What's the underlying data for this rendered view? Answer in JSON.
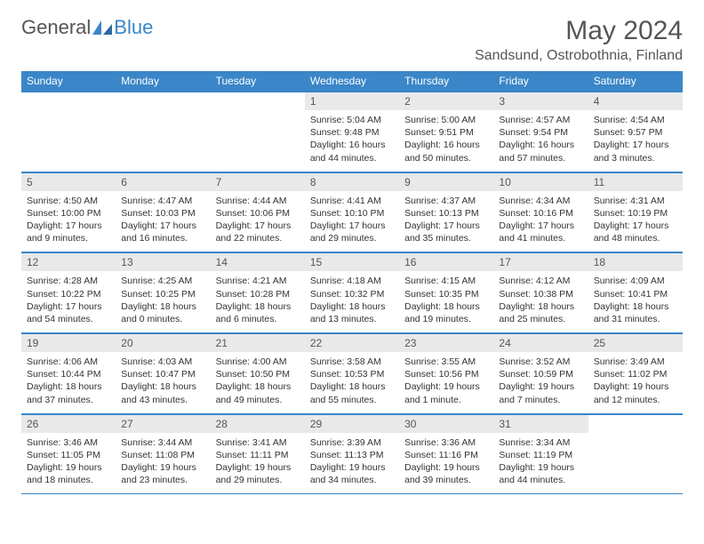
{
  "brand": {
    "part1": "General",
    "part2": "Blue"
  },
  "title": "May 2024",
  "location": "Sandsund, Ostrobothnia, Finland",
  "colors": {
    "accent": "#3a86c8",
    "header_bg": "#3a86c8",
    "daynum_bg": "#e9e9e9",
    "text": "#333333",
    "muted": "#555555",
    "page_bg": "#ffffff"
  },
  "dow": [
    "Sunday",
    "Monday",
    "Tuesday",
    "Wednesday",
    "Thursday",
    "Friday",
    "Saturday"
  ],
  "weeks": [
    [
      null,
      null,
      null,
      {
        "n": "1",
        "sr": "5:04 AM",
        "ss": "9:48 PM",
        "dl": "16 hours and 44 minutes."
      },
      {
        "n": "2",
        "sr": "5:00 AM",
        "ss": "9:51 PM",
        "dl": "16 hours and 50 minutes."
      },
      {
        "n": "3",
        "sr": "4:57 AM",
        "ss": "9:54 PM",
        "dl": "16 hours and 57 minutes."
      },
      {
        "n": "4",
        "sr": "4:54 AM",
        "ss": "9:57 PM",
        "dl": "17 hours and 3 minutes."
      }
    ],
    [
      {
        "n": "5",
        "sr": "4:50 AM",
        "ss": "10:00 PM",
        "dl": "17 hours and 9 minutes."
      },
      {
        "n": "6",
        "sr": "4:47 AM",
        "ss": "10:03 PM",
        "dl": "17 hours and 16 minutes."
      },
      {
        "n": "7",
        "sr": "4:44 AM",
        "ss": "10:06 PM",
        "dl": "17 hours and 22 minutes."
      },
      {
        "n": "8",
        "sr": "4:41 AM",
        "ss": "10:10 PM",
        "dl": "17 hours and 29 minutes."
      },
      {
        "n": "9",
        "sr": "4:37 AM",
        "ss": "10:13 PM",
        "dl": "17 hours and 35 minutes."
      },
      {
        "n": "10",
        "sr": "4:34 AM",
        "ss": "10:16 PM",
        "dl": "17 hours and 41 minutes."
      },
      {
        "n": "11",
        "sr": "4:31 AM",
        "ss": "10:19 PM",
        "dl": "17 hours and 48 minutes."
      }
    ],
    [
      {
        "n": "12",
        "sr": "4:28 AM",
        "ss": "10:22 PM",
        "dl": "17 hours and 54 minutes."
      },
      {
        "n": "13",
        "sr": "4:25 AM",
        "ss": "10:25 PM",
        "dl": "18 hours and 0 minutes."
      },
      {
        "n": "14",
        "sr": "4:21 AM",
        "ss": "10:28 PM",
        "dl": "18 hours and 6 minutes."
      },
      {
        "n": "15",
        "sr": "4:18 AM",
        "ss": "10:32 PM",
        "dl": "18 hours and 13 minutes."
      },
      {
        "n": "16",
        "sr": "4:15 AM",
        "ss": "10:35 PM",
        "dl": "18 hours and 19 minutes."
      },
      {
        "n": "17",
        "sr": "4:12 AM",
        "ss": "10:38 PM",
        "dl": "18 hours and 25 minutes."
      },
      {
        "n": "18",
        "sr": "4:09 AM",
        "ss": "10:41 PM",
        "dl": "18 hours and 31 minutes."
      }
    ],
    [
      {
        "n": "19",
        "sr": "4:06 AM",
        "ss": "10:44 PM",
        "dl": "18 hours and 37 minutes."
      },
      {
        "n": "20",
        "sr": "4:03 AM",
        "ss": "10:47 PM",
        "dl": "18 hours and 43 minutes."
      },
      {
        "n": "21",
        "sr": "4:00 AM",
        "ss": "10:50 PM",
        "dl": "18 hours and 49 minutes."
      },
      {
        "n": "22",
        "sr": "3:58 AM",
        "ss": "10:53 PM",
        "dl": "18 hours and 55 minutes."
      },
      {
        "n": "23",
        "sr": "3:55 AM",
        "ss": "10:56 PM",
        "dl": "19 hours and 1 minute."
      },
      {
        "n": "24",
        "sr": "3:52 AM",
        "ss": "10:59 PM",
        "dl": "19 hours and 7 minutes."
      },
      {
        "n": "25",
        "sr": "3:49 AM",
        "ss": "11:02 PM",
        "dl": "19 hours and 12 minutes."
      }
    ],
    [
      {
        "n": "26",
        "sr": "3:46 AM",
        "ss": "11:05 PM",
        "dl": "19 hours and 18 minutes."
      },
      {
        "n": "27",
        "sr": "3:44 AM",
        "ss": "11:08 PM",
        "dl": "19 hours and 23 minutes."
      },
      {
        "n": "28",
        "sr": "3:41 AM",
        "ss": "11:11 PM",
        "dl": "19 hours and 29 minutes."
      },
      {
        "n": "29",
        "sr": "3:39 AM",
        "ss": "11:13 PM",
        "dl": "19 hours and 34 minutes."
      },
      {
        "n": "30",
        "sr": "3:36 AM",
        "ss": "11:16 PM",
        "dl": "19 hours and 39 minutes."
      },
      {
        "n": "31",
        "sr": "3:34 AM",
        "ss": "11:19 PM",
        "dl": "19 hours and 44 minutes."
      },
      null
    ]
  ],
  "labels": {
    "sunrise": "Sunrise:",
    "sunset": "Sunset:",
    "daylight": "Daylight:"
  }
}
